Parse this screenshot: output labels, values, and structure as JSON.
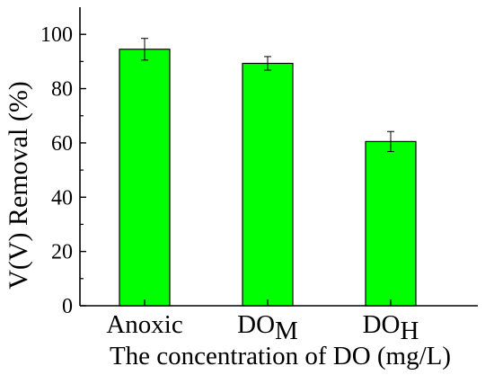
{
  "chart_data": {
    "type": "bar",
    "categories": [
      {
        "main": "Anoxic",
        "sub": ""
      },
      {
        "main": "DO",
        "sub": "M"
      },
      {
        "main": "DO",
        "sub": "H"
      }
    ],
    "values": [
      94.5,
      89.3,
      60.5
    ],
    "errors": [
      4.0,
      2.5,
      3.7
    ],
    "xlabel": "The concentration of DO (mg/L)",
    "ylabel": "V(V) Removal (%)",
    "ylim": [
      0,
      110
    ],
    "yticks": [
      0,
      20,
      40,
      60,
      80,
      100
    ],
    "grid": false,
    "colors": {
      "bar_fill": "#00ff00",
      "bar_stroke": "#000000",
      "axis": "#000000",
      "errorbar": "#000000"
    }
  }
}
